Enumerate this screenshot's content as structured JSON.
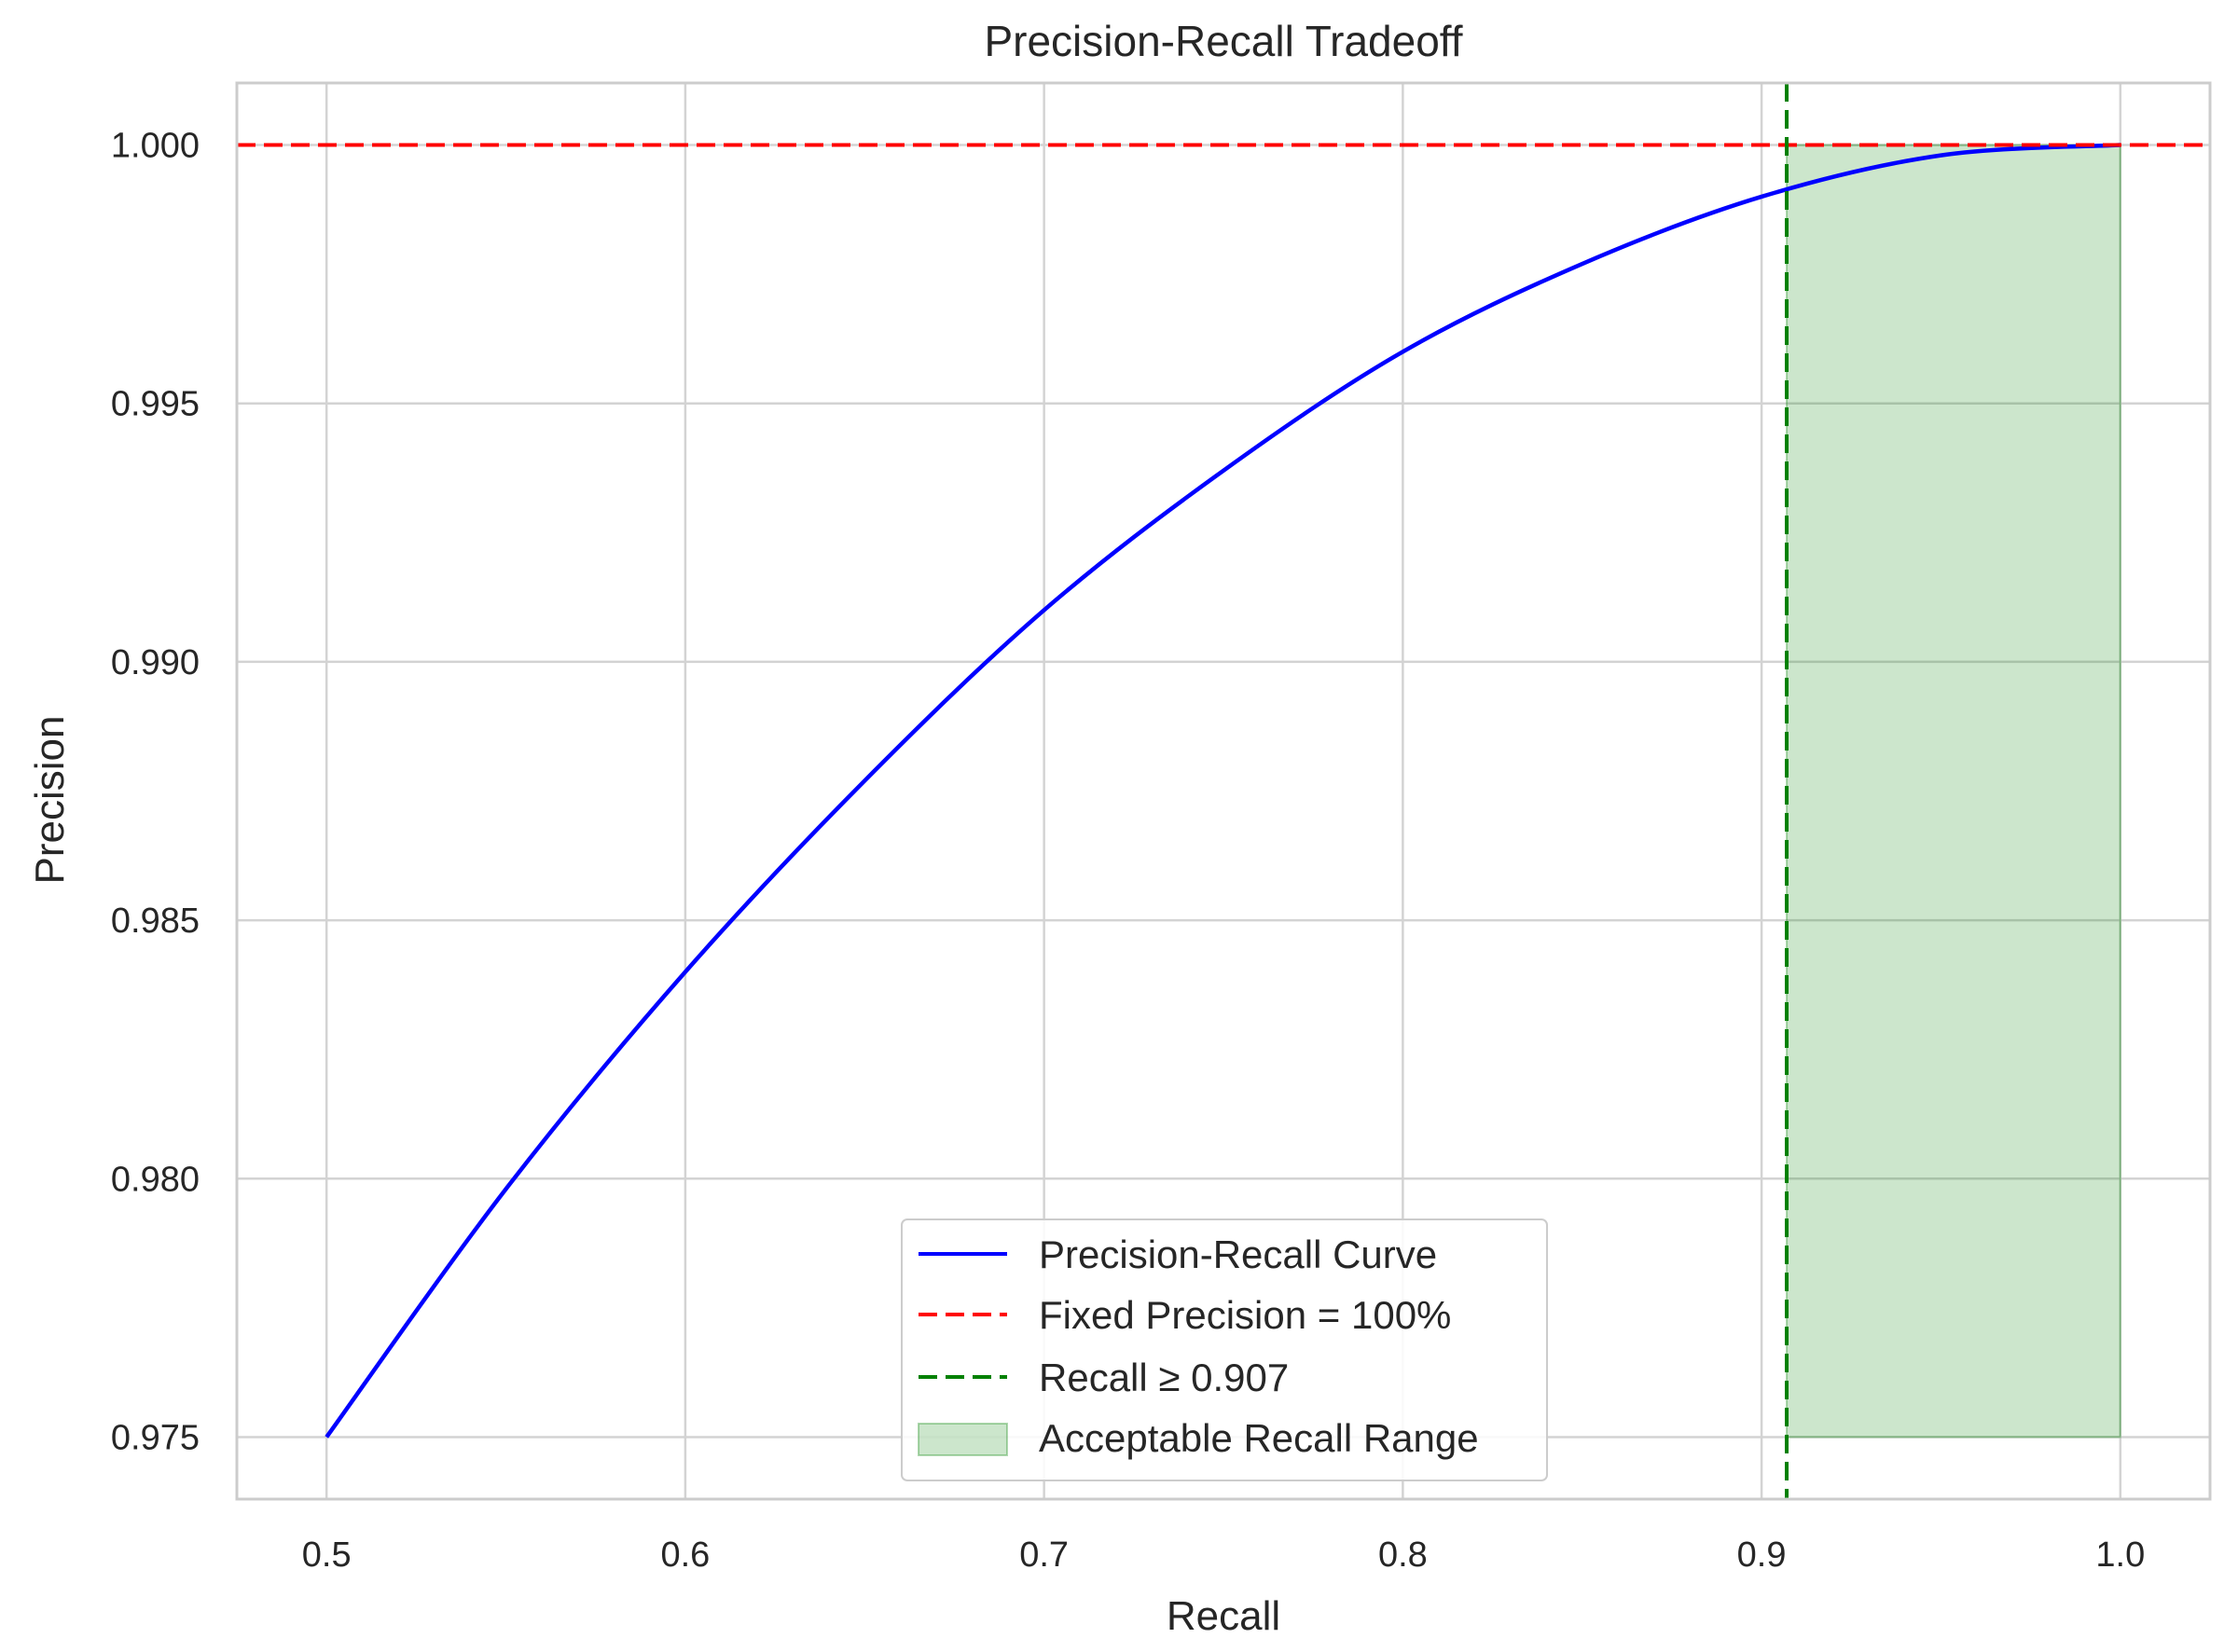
{
  "chart_data": {
    "type": "line",
    "title": "Precision-Recall Tradeoff",
    "xlabel": "Recall",
    "ylabel": "Precision",
    "xlim": [
      0.475,
      1.025
    ],
    "ylim": [
      0.9738,
      1.0012
    ],
    "grid": true,
    "xticks": [
      0.5,
      0.6,
      0.7,
      0.8,
      0.9,
      1.0
    ],
    "xtick_labels": [
      "0.5",
      "0.6",
      "0.7",
      "0.8",
      "0.9",
      "1.0"
    ],
    "yticks": [
      0.975,
      0.98,
      0.985,
      0.99,
      0.995,
      1.0
    ],
    "ytick_labels": [
      "0.975",
      "0.980",
      "0.985",
      "0.990",
      "0.995",
      "1.000"
    ],
    "series": [
      {
        "name": "Precision-Recall Curve",
        "color": "#0000ff",
        "style": "solid",
        "x": [
          0.5,
          0.55,
          0.6,
          0.65,
          0.7,
          0.75,
          0.8,
          0.85,
          0.9,
          0.95,
          1.0
        ],
        "y": [
          0.975,
          0.9798,
          0.984,
          0.9877,
          0.991,
          0.9937,
          0.996,
          0.9977,
          0.999,
          0.9998,
          1.0
        ]
      },
      {
        "name": "Fixed Precision = 100%",
        "color": "#ff0000",
        "style": "dashed",
        "orientation": "horizontal",
        "value": 1.0
      },
      {
        "name": "Recall ≥ 0.907",
        "color": "#008000",
        "style": "dashed",
        "orientation": "vertical",
        "value": 0.907
      },
      {
        "name": "Acceptable Recall Range",
        "color": "#008000",
        "style": "fill",
        "x_range": [
          0.907,
          1.0
        ],
        "y_range": [
          0.975,
          1.0
        ]
      }
    ],
    "legend_position": "bottom-center"
  }
}
